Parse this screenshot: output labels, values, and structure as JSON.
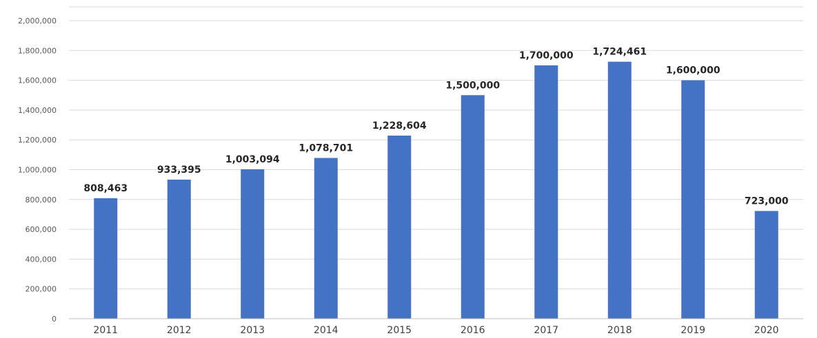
{
  "chart_data": {
    "type": "bar",
    "title": "",
    "xlabel": "",
    "ylabel": "",
    "categories": [
      "2011",
      "2012",
      "2013",
      "2014",
      "2015",
      "2016",
      "2017",
      "2018",
      "2019",
      "2020"
    ],
    "values": [
      808463,
      933395,
      1003094,
      1078701,
      1228604,
      1500000,
      1700000,
      1724461,
      1600000,
      723000
    ],
    "data_labels": [
      "808,463",
      "933,395",
      "1,003,094",
      "1,078,701",
      "1,228,604",
      "1,500,000",
      "1,700,000",
      "1,724,461",
      "1,600,000",
      "723,000"
    ],
    "ylim": [
      0,
      2000000
    ],
    "yticks": [
      0,
      200000,
      400000,
      600000,
      800000,
      1000000,
      1200000,
      1400000,
      1600000,
      1800000,
      2000000
    ],
    "ytick_labels": [
      "0",
      "200,000",
      "400,000",
      "600,000",
      "800,000",
      "1,000,000",
      "1,200,000",
      "1,400,000",
      "1,600,000",
      "1,800,000",
      "2,000,000"
    ],
    "grid": true,
    "legend": "none",
    "colors": {
      "bar": "#4472C4",
      "grid": "#D9D9D9",
      "axis": "#BFBFBF"
    }
  }
}
